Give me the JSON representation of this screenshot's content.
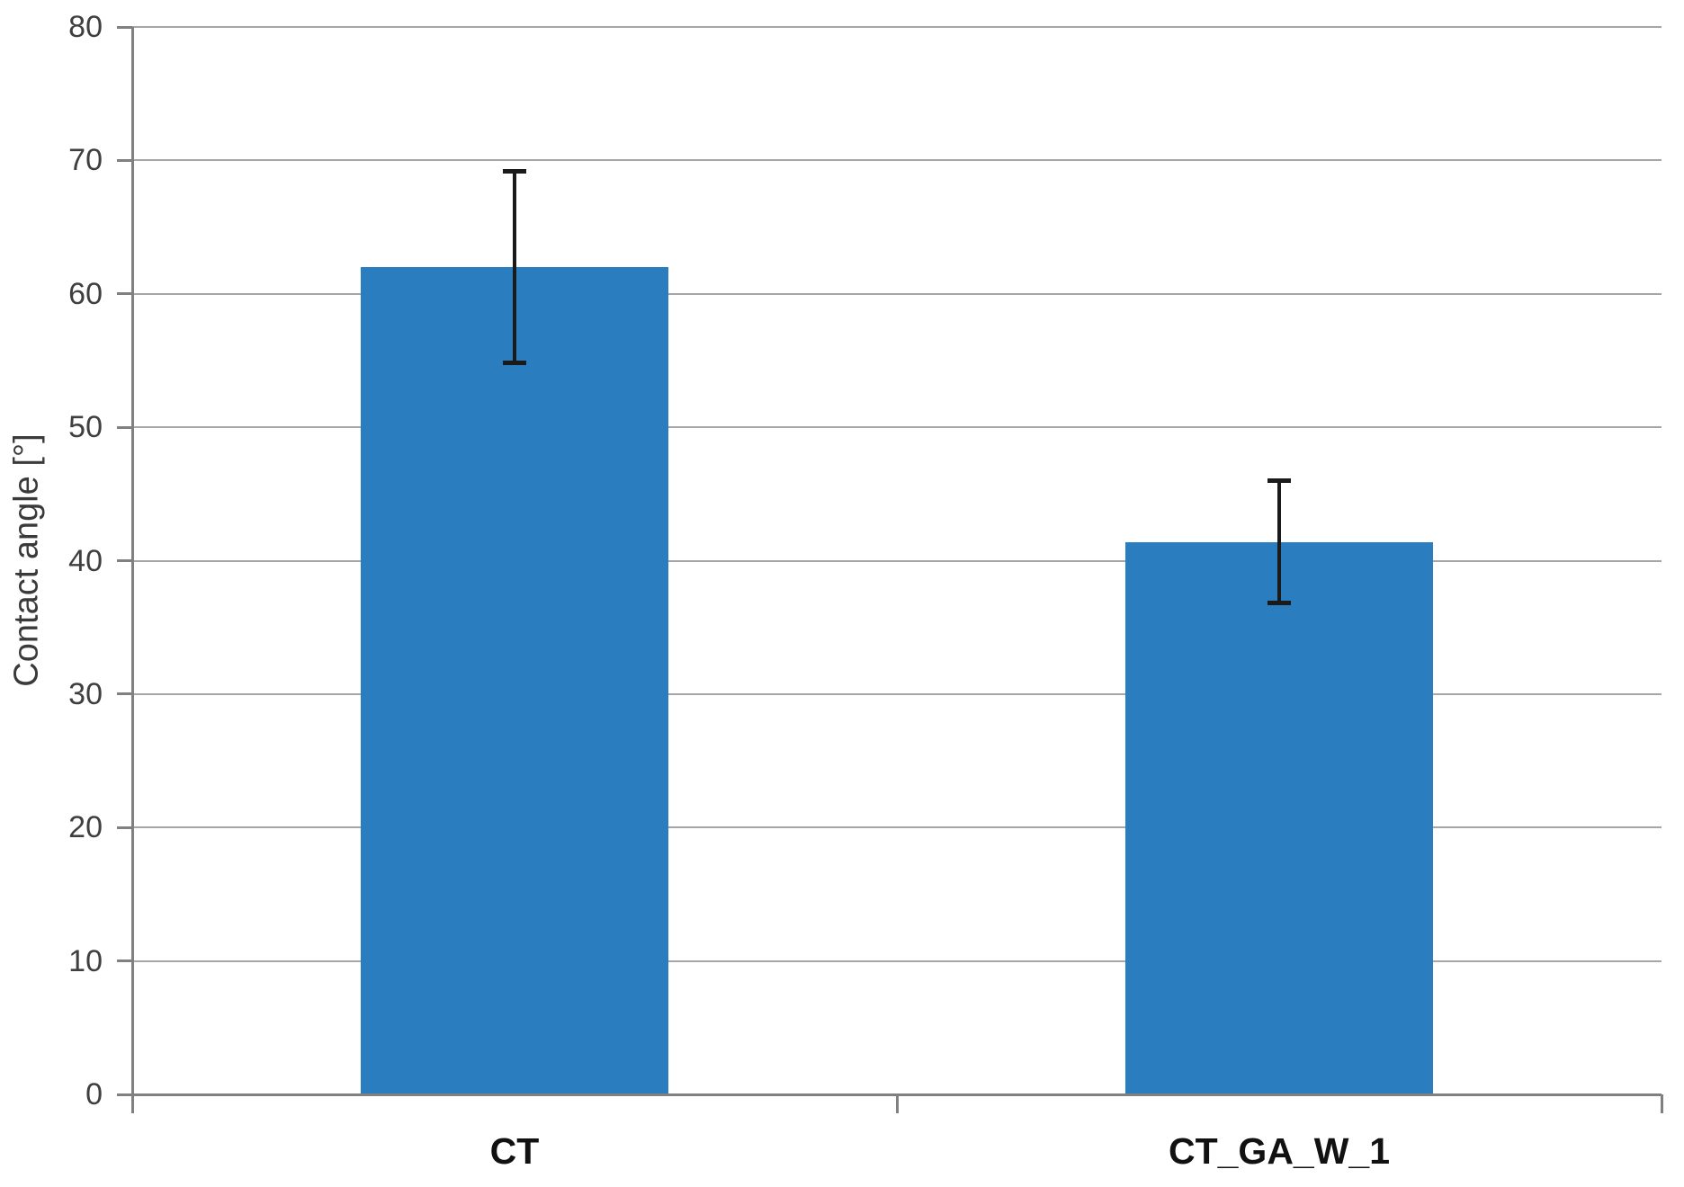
{
  "chart_data": {
    "type": "bar",
    "title": "",
    "xlabel": "",
    "ylabel": "Contact angle [°]",
    "categories": [
      "CT",
      "CT_GA_W_1"
    ],
    "series": [
      {
        "name": "Contact angle",
        "values": [
          62.0,
          41.4
        ],
        "errors": [
          7.2,
          4.6
        ]
      }
    ],
    "ylim": [
      0,
      80
    ],
    "yticks": [
      0,
      10,
      20,
      30,
      40,
      50,
      60,
      70,
      80
    ],
    "grid": "horizontal",
    "legend_position": "none",
    "colors": {
      "bar": "#2a7ec0",
      "gridline": "#a6a6a6",
      "axis": "#808080",
      "error_bar": "#1a1a1a",
      "tick_label": "#3f3f3f",
      "category_label": "#111111",
      "background": "#ffffff"
    }
  }
}
